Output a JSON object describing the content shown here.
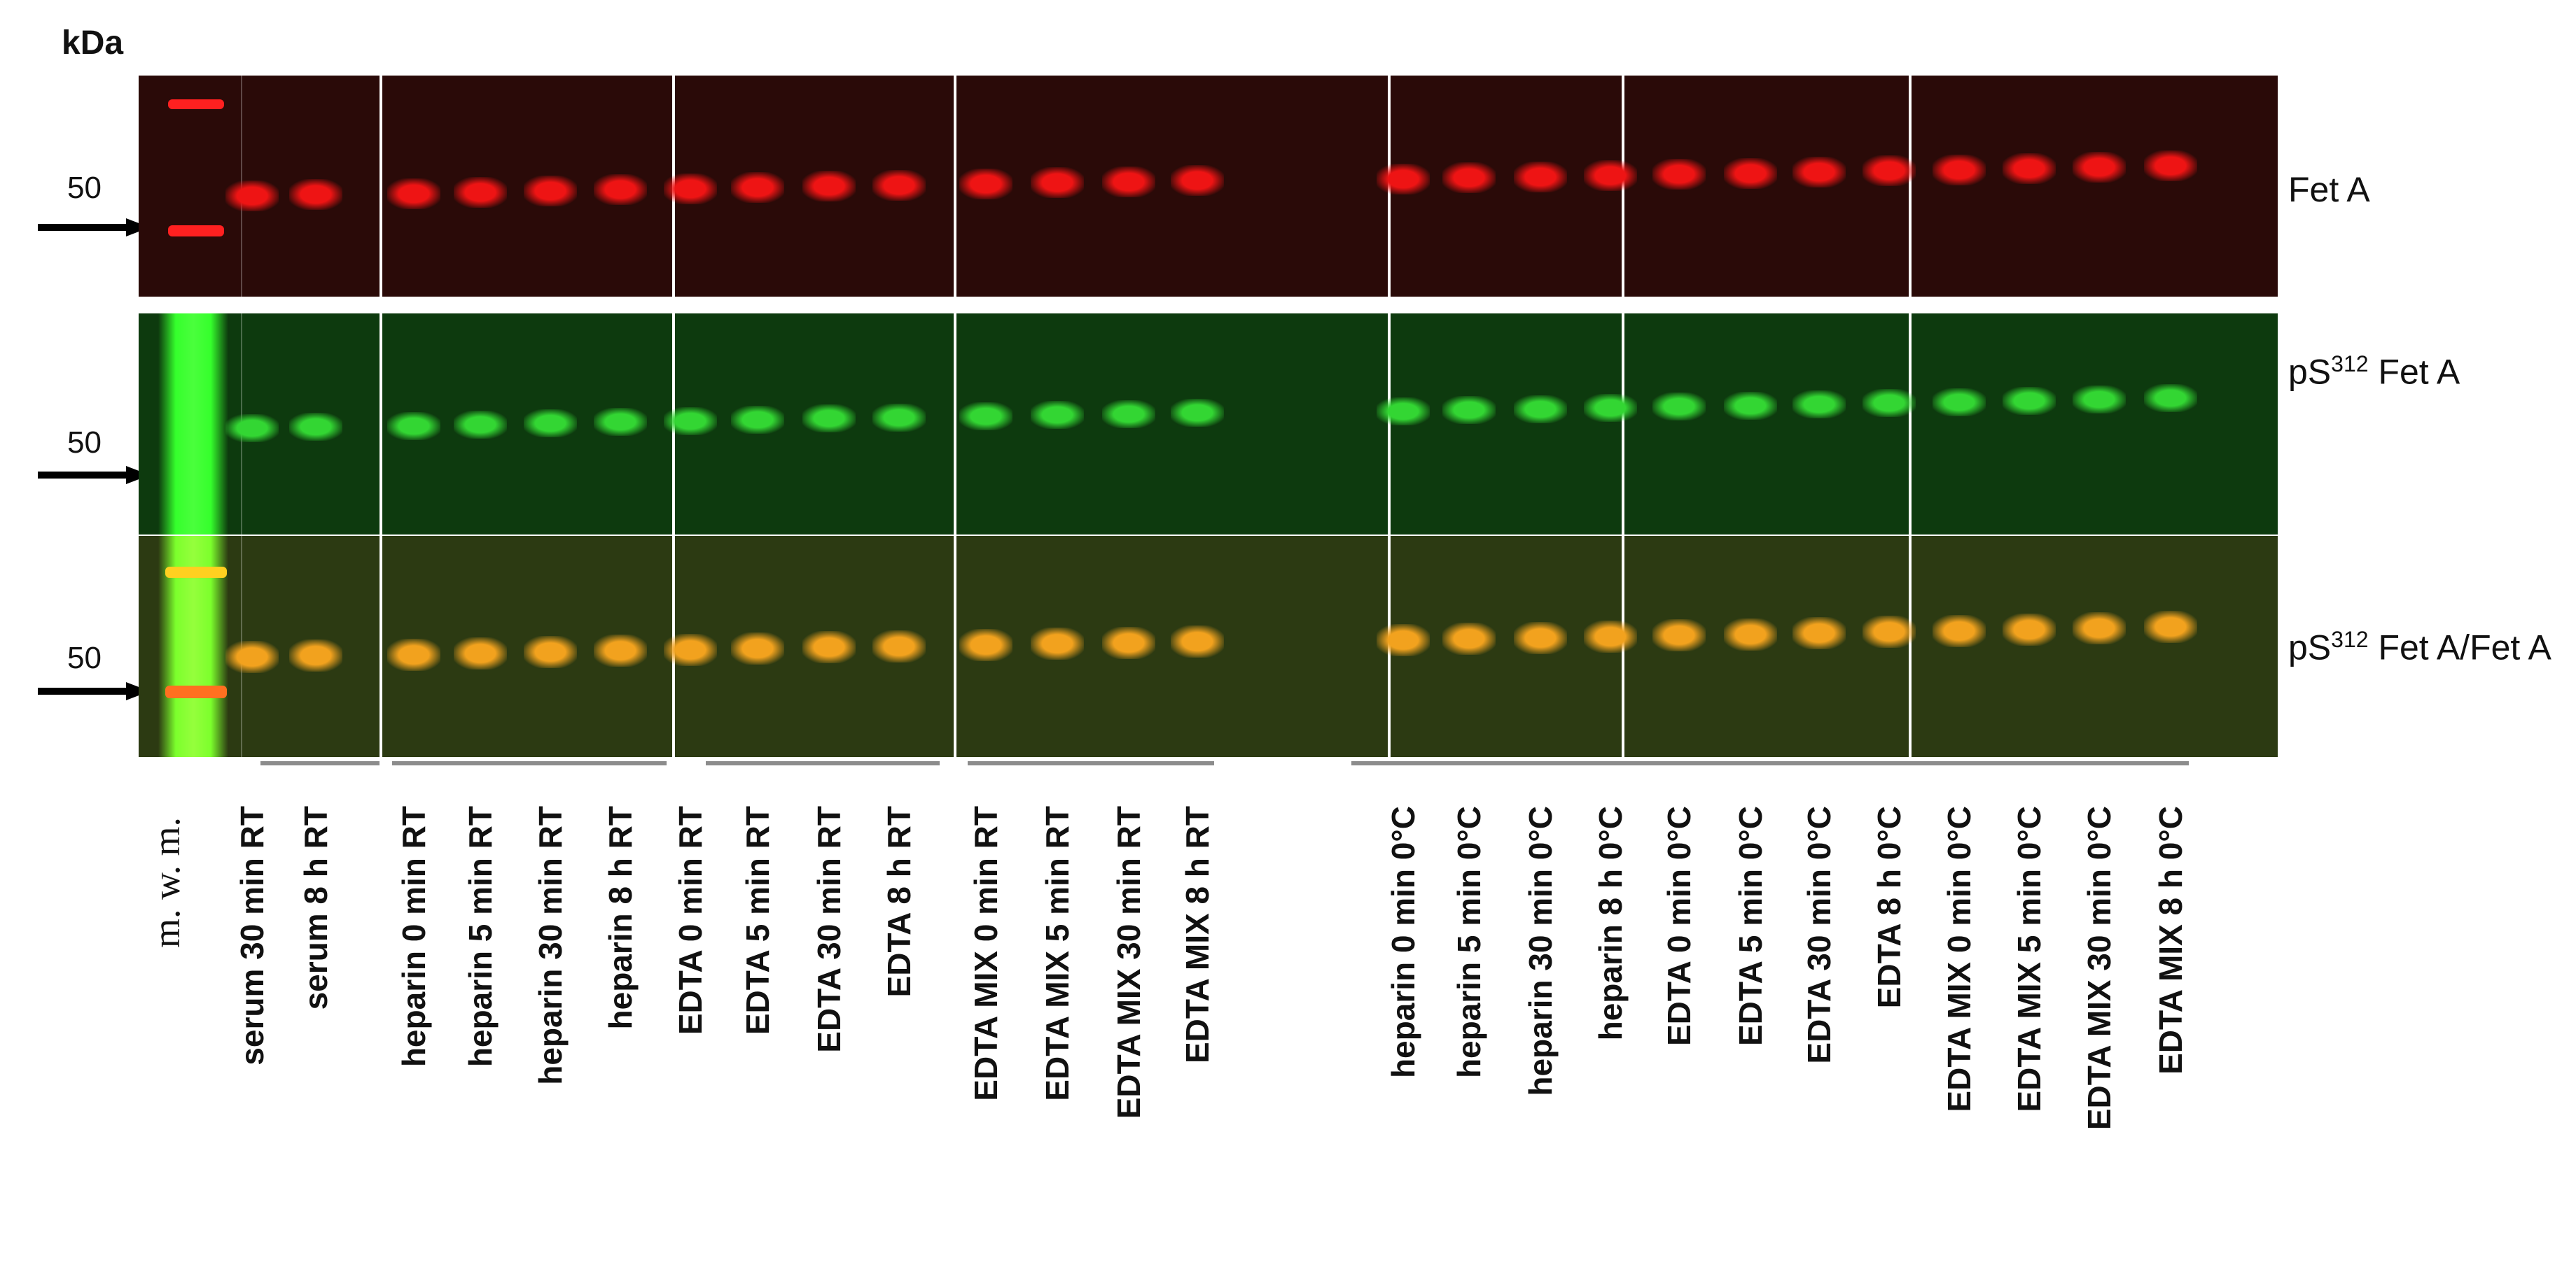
{
  "unit_label": "kDa",
  "marker_value": "50",
  "mwm_label": "m. w. m.",
  "panels": [
    {
      "id": "fet",
      "label": "Fet A",
      "colors": {
        "bg": "#2a0a08",
        "band": "#e81010",
        "ladder": "#ff1a1a"
      }
    },
    {
      "id": "ps",
      "label_main": "pS",
      "label_sup": "312",
      "label_rest": " Fet A",
      "colors": {
        "bg": "#0d3a0e",
        "band": "#2dd02d",
        "ladder": "#3cff32"
      }
    },
    {
      "id": "merge",
      "label_main": "pS",
      "label_sup": "312",
      "label_rest": " Fet A/Fet A",
      "colors": {
        "bg": "#2c3a12",
        "band": "#f0a020",
        "ladder": "#8cff30"
      }
    }
  ],
  "lanes": [
    "serum 30 min RT",
    "serum 8 h RT",
    "heparin 0 min RT",
    "heparin 5 min RT",
    "heparin 30 min RT",
    "heparin 8 h RT",
    "EDTA 0 min RT",
    "EDTA 5 min RT",
    "EDTA 30 min RT",
    "EDTA 8 h RT",
    "EDTA MIX 0 min RT",
    "EDTA MIX 5 min RT",
    "EDTA MIX 30 min RT",
    "EDTA MIX 8 h RT",
    "heparin 0 min 0°C",
    "heparin 5 min 0°C",
    "heparin 30 min 0°C",
    "heparin 8 h 0°C",
    "EDTA 0 min 0°C",
    "EDTA 5 min 0°C",
    "EDTA 30 min 0°C",
    "EDTA 8 h 0°C",
    "EDTA MIX 0 min 0°C",
    "EDTA MIX 5 min 0°C",
    "EDTA MIX 30 min 0°C",
    "EDTA MIX 8 h 0°C"
  ]
}
